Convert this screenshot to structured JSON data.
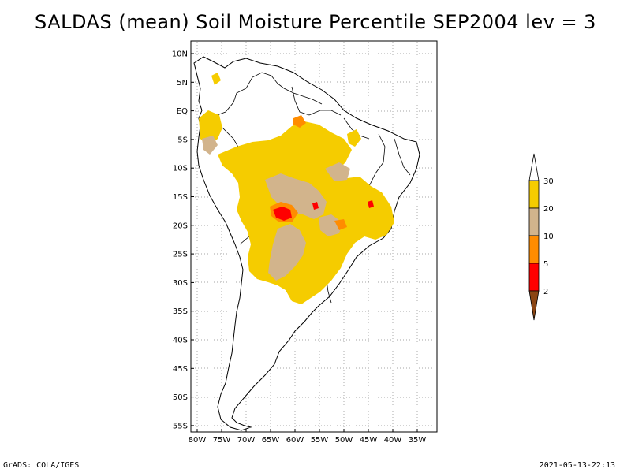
{
  "title": "SALDAS (mean) Soil Moisture Percentile SEP2004 lev = 3",
  "footer": {
    "left": "GrADS: COLA/IGES",
    "right": "2021-05-13-22:13"
  },
  "map": {
    "lon_range": [
      -82,
      -32
    ],
    "lat_range": [
      -56,
      12
    ],
    "lon_ticks": [
      {
        "value": -80,
        "label": "80W"
      },
      {
        "value": -75,
        "label": "75W"
      },
      {
        "value": -70,
        "label": "70W"
      },
      {
        "value": -65,
        "label": "65W"
      },
      {
        "value": -60,
        "label": "60W"
      },
      {
        "value": -55,
        "label": "55W"
      },
      {
        "value": -50,
        "label": "50W"
      },
      {
        "value": -45,
        "label": "45W"
      },
      {
        "value": -40,
        "label": "40W"
      },
      {
        "value": -35,
        "label": "35W"
      }
    ],
    "lat_ticks": [
      {
        "value": 10,
        "label": "10N"
      },
      {
        "value": 5,
        "label": "5N"
      },
      {
        "value": 0,
        "label": "EQ"
      },
      {
        "value": -5,
        "label": "5S"
      },
      {
        "value": -10,
        "label": "10S"
      },
      {
        "value": -15,
        "label": "15S"
      },
      {
        "value": -20,
        "label": "20S"
      },
      {
        "value": -25,
        "label": "25S"
      },
      {
        "value": -30,
        "label": "30S"
      },
      {
        "value": -35,
        "label": "35S"
      },
      {
        "value": -40,
        "label": "40S"
      },
      {
        "value": -45,
        "label": "45S"
      },
      {
        "value": -50,
        "label": "50S"
      },
      {
        "value": -55,
        "label": "55S"
      }
    ]
  },
  "legend": {
    "labels": [
      "30",
      "20",
      "10",
      "5",
      "2"
    ],
    "colors": {
      "above": "#ffffff",
      "c20_30": "#f5cc00",
      "c10_20": "#d2b48c",
      "c5_10": "#ff8c00",
      "c2_5": "#ff0000",
      "below": "#8b4513"
    }
  }
}
